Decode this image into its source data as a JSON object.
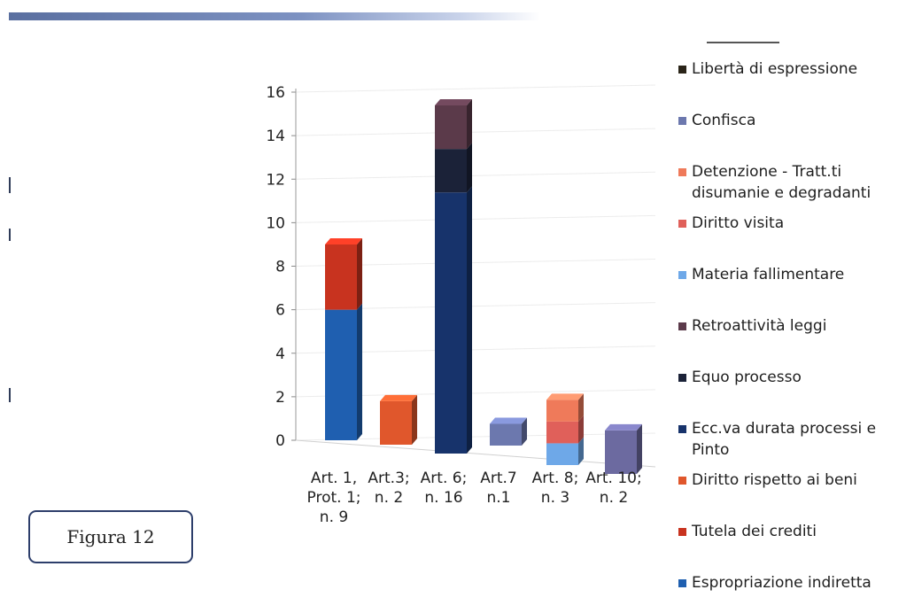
{
  "figure_label": "Figura 12",
  "chart_data": {
    "type": "bar",
    "stacked": true,
    "three_d": true,
    "grid": true,
    "legend_position": "right",
    "ylim": [
      0,
      16
    ],
    "yticks": [
      0,
      2,
      4,
      6,
      8,
      10,
      12,
      14,
      16
    ],
    "categories": [
      "Art. 1,\nProt. 1;\nn. 9",
      "Art.3;\nn. 2",
      "Art. 6;\nn. 16",
      "Art.7\nn.1",
      "Art. 8;\nn. 3",
      "Art. 10;\nn. 2"
    ],
    "series": [
      {
        "name": "Espropriazione indiretta",
        "color": "#1f5fb0",
        "values": [
          6,
          0,
          0,
          0,
          0,
          0
        ]
      },
      {
        "name": "Tutela dei crediti",
        "color": "#c8331f",
        "values": [
          3,
          0,
          0,
          0,
          0,
          0
        ]
      },
      {
        "name": "Diritto rispetto ai beni",
        "color": "#e0572c",
        "values": [
          0,
          2,
          0,
          0,
          0,
          0
        ]
      },
      {
        "name": "Ecc.va durata processi e\nPinto",
        "color": "#17336b",
        "values": [
          0,
          0,
          12,
          0,
          0,
          0
        ]
      },
      {
        "name": "Equo processo",
        "color": "#1b2238",
        "values": [
          0,
          0,
          2,
          0,
          0,
          0
        ]
      },
      {
        "name": "Retroattività leggi",
        "color": "#5b3a4a",
        "values": [
          0,
          0,
          2,
          0,
          0,
          0
        ]
      },
      {
        "name": "Materia fallimentare",
        "color": "#6ea8e8",
        "values": [
          0,
          0,
          0,
          0,
          1,
          0
        ]
      },
      {
        "name": "Diritto visita",
        "color": "#e0605a",
        "values": [
          0,
          0,
          0,
          0,
          1,
          0
        ]
      },
      {
        "name": "Detenzione - Tratt.ti\ndisumanie e degradanti",
        "color": "#ef7a5a",
        "values": [
          0,
          0,
          0,
          0,
          1,
          0
        ]
      },
      {
        "name": "Confisca",
        "color": "#6c78ae",
        "values": [
          0,
          0,
          0,
          1,
          0,
          0
        ]
      },
      {
        "name": "Libertà di espressione",
        "color": "#2a2418",
        "values": [
          0,
          0,
          0,
          0,
          0,
          2
        ]
      }
    ],
    "bar_face_colors": [
      null,
      null,
      null,
      null,
      null,
      "#6c6aa0"
    ]
  }
}
